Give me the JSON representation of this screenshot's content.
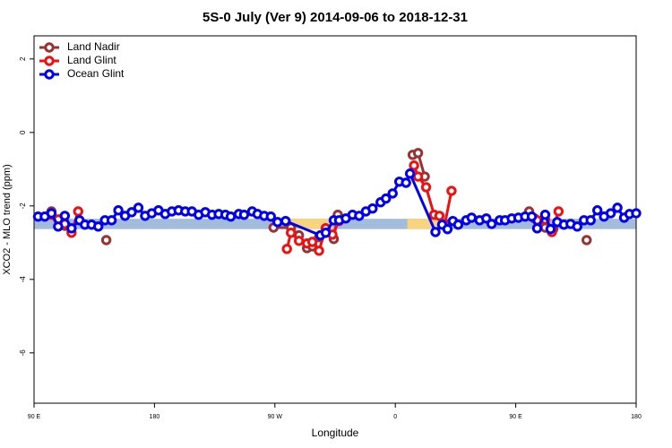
{
  "chart_data": {
    "type": "line",
    "title": "5S-0 July (Ver 9)   2014-09-06 to 2018-12-31",
    "x_label": "Longitude",
    "y_label": "XCO2 - MLO trend (ppm)",
    "xlim": [
      90,
      540
    ],
    "ylim": [
      -7.37,
      2.63
    ],
    "xticks": [
      {
        "value": 90,
        "label": "90 E"
      },
      {
        "value": 180,
        "label": "180"
      },
      {
        "value": 270,
        "label": "90 W"
      },
      {
        "value": 360,
        "label": "0"
      },
      {
        "value": 450,
        "label": "90 E"
      },
      {
        "value": 540,
        "label": "180"
      }
    ],
    "yticks": [
      2,
      0,
      -2,
      -4,
      -6
    ],
    "legend": "top-left",
    "band": {
      "ylim": [
        -2.63,
        -2.35
      ],
      "color": "#a3bcdc",
      "highlights": [
        [
          282,
          313
        ],
        [
          369,
          393
        ]
      ],
      "highlight_color": "#f7d47e"
    },
    "series": [
      {
        "name": "Land Nadir",
        "color": "#993333",
        "x": [
          103,
          109,
          113,
          null,
          144,
          null,
          269,
          282,
          288,
          294,
          298,
          303,
          308,
          314,
          317,
          null,
          373,
          377,
          382,
          null,
          460,
          464,
          472,
          478,
          null,
          503
        ],
        "values": [
          -2.15,
          -2.37,
          -2.54,
          null,
          -2.93,
          null,
          -2.59,
          -2.59,
          -2.8,
          -3.15,
          -3.1,
          -2.85,
          -2.61,
          -2.9,
          -2.24,
          null,
          -0.61,
          -0.56,
          -1.2,
          null,
          -2.15,
          -2.34,
          -2.59,
          -2.63,
          null,
          -2.93
        ]
      },
      {
        "name": "Land Glint",
        "color": "#ee1111",
        "x": [
          103,
          108,
          113,
          118,
          123,
          null,
          279,
          282,
          288,
          294,
          298,
          303,
          308,
          313,
          318,
          null,
          374,
          377,
          383,
          389,
          393,
          397,
          402,
          null,
          466,
          472,
          477,
          482
        ],
        "values": [
          -2.24,
          -2.37,
          -2.49,
          -2.73,
          -2.15,
          null,
          -3.17,
          -2.73,
          -2.95,
          -3.02,
          -2.98,
          -3.22,
          -2.61,
          -2.78,
          -2.41,
          null,
          -0.9,
          -1.2,
          -1.49,
          -2.24,
          -2.27,
          -2.49,
          -1.59,
          null,
          -2.39,
          -2.37,
          -2.71,
          -2.15
        ]
      },
      {
        "name": "Ocean Glint",
        "color": "#0000ee",
        "x": [
          93,
          98,
          103,
          108,
          113,
          118,
          124,
          128,
          133,
          138,
          143,
          148,
          153,
          158,
          163,
          168,
          173,
          178,
          183,
          188,
          193,
          198,
          203,
          208,
          213,
          218,
          223,
          228,
          233,
          237,
          243,
          247,
          253,
          257,
          262,
          267,
          272,
          278,
          304,
          308,
          314,
          318,
          323,
          328,
          333,
          338,
          343,
          349,
          353,
          358,
          363,
          368,
          371,
          390,
          395,
          399,
          403,
          407,
          413,
          417,
          423,
          428,
          432,
          438,
          442,
          447,
          452,
          457,
          462,
          466,
          472,
          476,
          481,
          486,
          491,
          496,
          501,
          506,
          511,
          516,
          521,
          526,
          531,
          535,
          540
        ],
        "values": [
          -2.29,
          -2.29,
          -2.2,
          -2.56,
          -2.27,
          -2.61,
          -2.39,
          -2.51,
          -2.51,
          -2.56,
          -2.39,
          -2.39,
          -2.12,
          -2.27,
          -2.17,
          -2.05,
          -2.27,
          -2.2,
          -2.12,
          -2.22,
          -2.15,
          -2.12,
          -2.15,
          -2.15,
          -2.24,
          -2.17,
          -2.24,
          -2.22,
          -2.24,
          -2.29,
          -2.22,
          -2.24,
          -2.15,
          -2.22,
          -2.27,
          -2.29,
          -2.44,
          -2.41,
          -2.8,
          -2.73,
          -2.39,
          -2.39,
          -2.34,
          -2.24,
          -2.27,
          -2.15,
          -2.07,
          -1.9,
          -1.8,
          -1.66,
          -1.34,
          -1.37,
          -1.12,
          -2.71,
          -2.51,
          -2.63,
          -2.41,
          -2.51,
          -2.39,
          -2.32,
          -2.39,
          -2.34,
          -2.49,
          -2.39,
          -2.39,
          -2.34,
          -2.32,
          -2.29,
          -2.29,
          -2.61,
          -2.24,
          -2.63,
          -2.44,
          -2.51,
          -2.49,
          -2.56,
          -2.39,
          -2.39,
          -2.12,
          -2.29,
          -2.2,
          -2.05,
          -2.32,
          -2.22,
          -2.2
        ]
      }
    ]
  }
}
